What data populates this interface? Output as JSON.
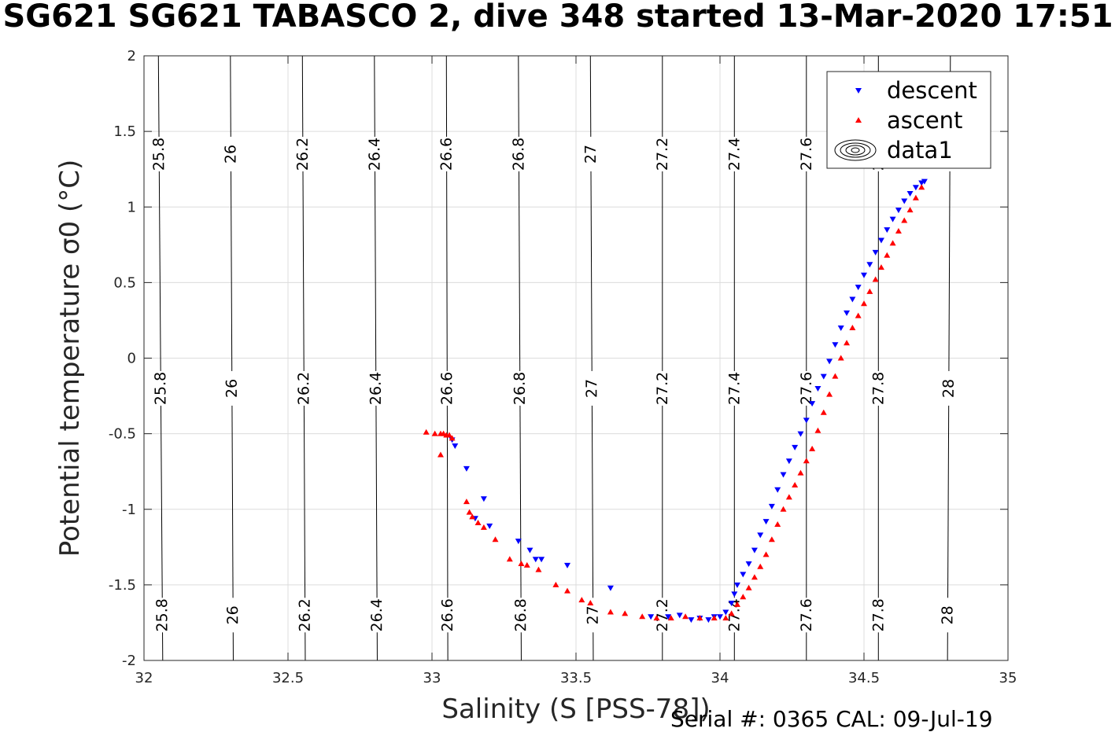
{
  "title": "SG621 SG621 TABASCO 2, dive 348 started 13-Mar-2020 17:51",
  "footer": "Serial #: 0365  CAL: 09-Jul-19",
  "colors": {
    "descent": "#0000ff",
    "ascent": "#ff0000",
    "contour": "#000000",
    "grid": "#dcdcdc"
  },
  "chart_data": {
    "type": "scatter",
    "xlabel": "Salinity (S [PSS-78])",
    "ylabel": "Potential temperature σ0 (°C)",
    "xlim": [
      32,
      35
    ],
    "ylim": [
      -2,
      2
    ],
    "xticks": [
      32,
      32.5,
      33,
      33.5,
      34,
      34.5,
      35
    ],
    "yticks": [
      -2,
      -1.5,
      -1,
      -0.5,
      0,
      0.5,
      1,
      1.5,
      2
    ],
    "xtick_labels": [
      "32",
      "32.5",
      "33",
      "33.5",
      "34",
      "34.5",
      "35"
    ],
    "ytick_labels": [
      "-2",
      "-1.5",
      "-1",
      "-0.5",
      "0",
      "0.5",
      "1",
      "1.5",
      "2"
    ],
    "grid": true,
    "legend_position": "top-right",
    "legend": [
      "descent",
      "ascent",
      "data1"
    ],
    "series": [
      {
        "name": "descent",
        "marker": "triangle-down",
        "x": [
          33.07,
          33.08,
          33.12,
          33.18,
          33.2,
          33.15,
          33.3,
          33.34,
          33.36,
          33.38,
          33.47,
          33.62,
          33.76,
          33.82,
          33.86,
          33.9,
          33.93,
          33.96,
          33.98,
          34.0,
          34.02,
          34.04,
          34.05,
          34.06,
          34.08,
          34.1,
          34.12,
          34.14,
          34.16,
          34.18,
          34.2,
          34.22,
          34.24,
          34.26,
          34.28,
          34.3,
          34.32,
          34.34,
          34.36,
          34.38,
          34.4,
          34.42,
          34.44,
          34.46,
          34.48,
          34.5,
          34.52,
          34.54,
          34.56,
          34.58,
          34.6,
          34.62,
          34.64,
          34.66,
          34.68,
          34.7,
          34.71
        ],
        "y": [
          -0.54,
          -0.58,
          -0.73,
          -0.93,
          -1.11,
          -1.06,
          -1.21,
          -1.27,
          -1.33,
          -1.33,
          -1.37,
          -1.52,
          -1.71,
          -1.71,
          -1.7,
          -1.73,
          -1.72,
          -1.73,
          -1.71,
          -1.71,
          -1.68,
          -1.62,
          -1.56,
          -1.5,
          -1.43,
          -1.36,
          -1.27,
          -1.17,
          -1.08,
          -0.98,
          -0.87,
          -0.77,
          -0.68,
          -0.59,
          -0.5,
          -0.41,
          -0.3,
          -0.2,
          -0.12,
          -0.02,
          0.09,
          0.2,
          0.3,
          0.39,
          0.47,
          0.55,
          0.62,
          0.7,
          0.78,
          0.85,
          0.92,
          0.98,
          1.04,
          1.09,
          1.13,
          1.16,
          1.17
        ]
      },
      {
        "name": "ascent",
        "marker": "triangle-up",
        "x": [
          32.98,
          33.01,
          33.03,
          33.04,
          33.05,
          33.06,
          33.07,
          33.03,
          33.12,
          33.13,
          33.14,
          33.16,
          33.18,
          33.22,
          33.27,
          33.31,
          33.33,
          33.37,
          33.43,
          33.47,
          33.52,
          33.55,
          33.62,
          33.67,
          33.73,
          33.78,
          33.83,
          33.88,
          33.93,
          33.98,
          34.02,
          34.04,
          34.06,
          34.08,
          34.1,
          34.12,
          34.14,
          34.16,
          34.18,
          34.2,
          34.22,
          34.24,
          34.26,
          34.28,
          34.3,
          34.32,
          34.34,
          34.36,
          34.38,
          34.4,
          34.42,
          34.44,
          34.46,
          34.48,
          34.5,
          34.52,
          34.54,
          34.56,
          34.58,
          34.6,
          34.62,
          34.64,
          34.66,
          34.68,
          34.7
        ],
        "y": [
          -0.49,
          -0.5,
          -0.5,
          -0.5,
          -0.51,
          -0.51,
          -0.53,
          -0.64,
          -0.95,
          -1.02,
          -1.05,
          -1.09,
          -1.12,
          -1.2,
          -1.33,
          -1.36,
          -1.37,
          -1.4,
          -1.5,
          -1.54,
          -1.6,
          -1.62,
          -1.68,
          -1.69,
          -1.71,
          -1.72,
          -1.72,
          -1.71,
          -1.72,
          -1.72,
          -1.72,
          -1.69,
          -1.63,
          -1.58,
          -1.52,
          -1.45,
          -1.38,
          -1.3,
          -1.2,
          -1.1,
          -1.0,
          -0.92,
          -0.84,
          -0.76,
          -0.68,
          -0.6,
          -0.48,
          -0.36,
          -0.24,
          -0.12,
          0.0,
          0.1,
          0.2,
          0.28,
          0.36,
          0.44,
          0.52,
          0.6,
          0.68,
          0.76,
          0.84,
          0.91,
          0.98,
          1.06,
          1.13
        ]
      }
    ],
    "contours": [
      {
        "label": "25.8",
        "x_at_ymax": 32.05,
        "x_at_ymin": 32.065
      },
      {
        "label": "26",
        "x_at_ymax": 32.3,
        "x_at_ymin": 32.31
      },
      {
        "label": "26.2",
        "x_at_ymax": 32.55,
        "x_at_ymin": 32.56
      },
      {
        "label": "26.4",
        "x_at_ymax": 32.8,
        "x_at_ymin": 32.81
      },
      {
        "label": "26.6",
        "x_at_ymax": 33.05,
        "x_at_ymin": 33.055
      },
      {
        "label": "26.8",
        "x_at_ymax": 33.3,
        "x_at_ymin": 33.31
      },
      {
        "label": "27",
        "x_at_ymax": 33.55,
        "x_at_ymin": 33.56
      },
      {
        "label": "27.2",
        "x_at_ymax": 33.8,
        "x_at_ymin": 33.8
      },
      {
        "label": "27.4",
        "x_at_ymax": 34.05,
        "x_at_ymin": 34.05
      },
      {
        "label": "27.6",
        "x_at_ymax": 34.3,
        "x_at_ymin": 34.3
      },
      {
        "label": "27.8",
        "x_at_ymax": 34.55,
        "x_at_ymin": 34.55
      },
      {
        "label": "28",
        "x_at_ymax": 34.8,
        "x_at_ymin": 34.79
      }
    ]
  }
}
